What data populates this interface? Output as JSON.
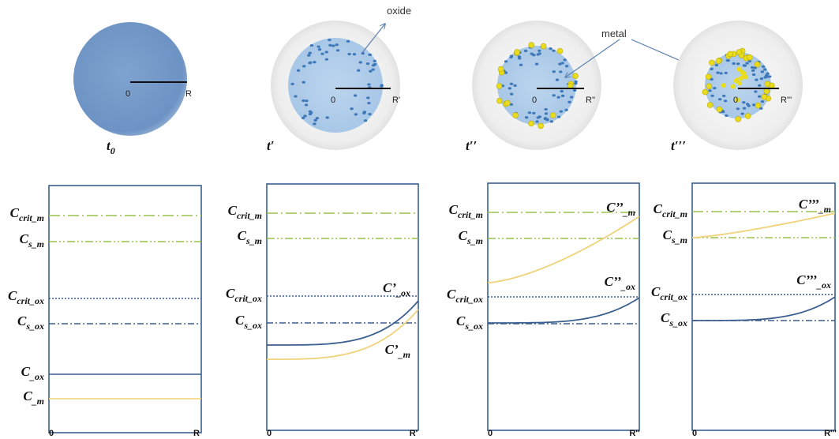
{
  "panels": [
    {
      "time": {
        "main": "t",
        "sub": "0"
      },
      "sphere": {
        "center": "0",
        "radius": "R"
      },
      "plot": {
        "levels": [
          {
            "main": "C",
            "sub": "crit_m"
          },
          {
            "main": "C",
            "sub": "s_m"
          },
          {
            "main": "C",
            "sub": "crit_ox"
          },
          {
            "main": "C",
            "sub": "s_ox"
          },
          {
            "main": "C",
            "sub": "_ox"
          },
          {
            "main": "C",
            "sub": "_m"
          }
        ],
        "curves": [],
        "x_start": "0",
        "x_end": "R"
      }
    },
    {
      "time": {
        "main": "t′",
        "sub": ""
      },
      "sphere": {
        "annotation": "oxide",
        "center": "0",
        "radius": "R'"
      },
      "plot": {
        "levels": [
          {
            "main": "C",
            "sub": "crit_m"
          },
          {
            "main": "C",
            "sub": "s_m"
          },
          {
            "main": "C",
            "sub": "crit_ox"
          },
          {
            "main": "C",
            "sub": "s_ox"
          }
        ],
        "curves": [
          {
            "main": "C’",
            "sub": "_ox"
          },
          {
            "main": "C’",
            "sub": "_m"
          }
        ],
        "x_start": "0",
        "x_end": "R'"
      }
    },
    {
      "time": {
        "main": "t′′",
        "sub": ""
      },
      "sphere": {
        "annotation": "metal",
        "center": "0",
        "radius": "R''"
      },
      "plot": {
        "levels": [
          {
            "main": "C",
            "sub": "crit_m"
          },
          {
            "main": "C",
            "sub": "s_m"
          },
          {
            "main": "C",
            "sub": "crit_ox"
          },
          {
            "main": "C",
            "sub": "s_ox"
          }
        ],
        "curves": [
          {
            "main": "C’’",
            "sub": "_m"
          },
          {
            "main": "C’’",
            "sub": "_ox"
          }
        ],
        "x_start": "0",
        "x_end": "R''"
      }
    },
    {
      "time": {
        "main": "t′′′",
        "sub": ""
      },
      "sphere": {
        "center": "0",
        "radius": "R'''"
      },
      "plot": {
        "levels": [
          {
            "main": "C",
            "sub": "crit_m"
          },
          {
            "main": "C",
            "sub": "s_m"
          },
          {
            "main": "C",
            "sub": "crit_ox"
          },
          {
            "main": "C",
            "sub": "s_ox"
          }
        ],
        "curves": [
          {
            "main": "C’’’",
            "sub": "_m"
          },
          {
            "main": "C’’’",
            "sub": "_ox"
          }
        ],
        "x_start": "0",
        "x_end": "R'''"
      }
    }
  ]
}
